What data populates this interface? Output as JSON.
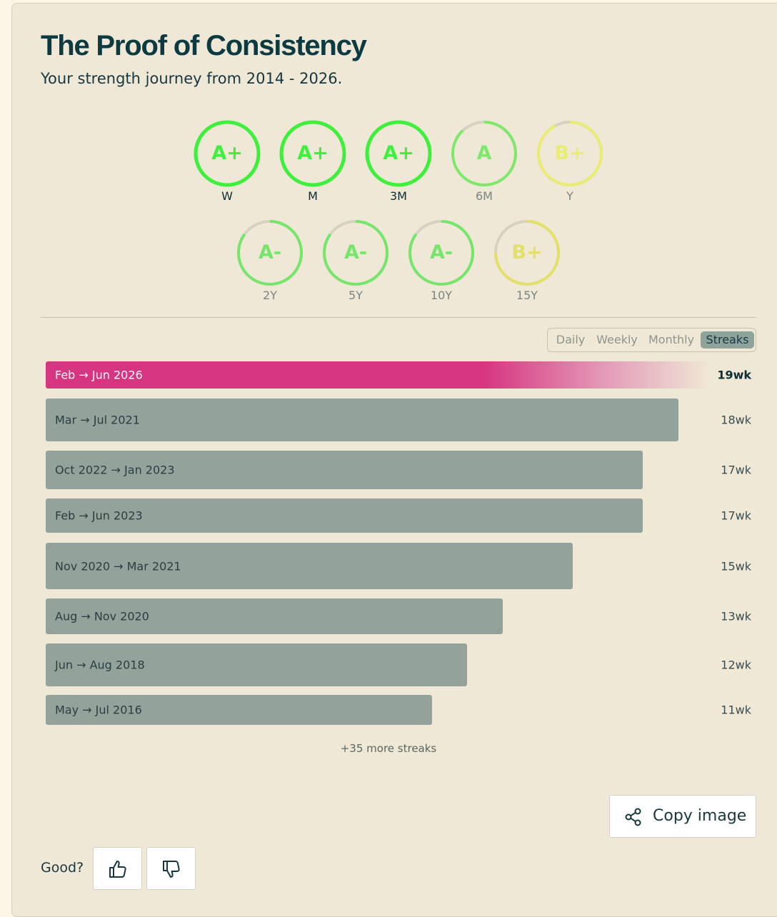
{
  "header": {
    "title": "The Proof of Consistency",
    "subtitle": "Your strength journey from 2014 - 2026."
  },
  "grades": [
    {
      "grade": "A+",
      "label": "W",
      "progress": 1.0,
      "color": "#3ef03b"
    },
    {
      "grade": "A+",
      "label": "M",
      "progress": 1.0,
      "color": "#3ef03b"
    },
    {
      "grade": "A+",
      "label": "3M",
      "progress": 1.0,
      "color": "#3ef03b"
    },
    {
      "grade": "A",
      "label": "6M",
      "progress": 0.88,
      "color": "#7ee86a"
    },
    {
      "grade": "B+",
      "label": "Y",
      "progress": 0.92,
      "color": "#e8ec70"
    },
    {
      "grade": "A-",
      "label": "2Y",
      "progress": 0.85,
      "color": "#76e66a"
    },
    {
      "grade": "A-",
      "label": "5Y",
      "progress": 0.85,
      "color": "#76e66a"
    },
    {
      "grade": "A-",
      "label": "10Y",
      "progress": 0.85,
      "color": "#76e66a"
    },
    {
      "grade": "B+",
      "label": "15Y",
      "progress": 0.75,
      "color": "#e3e06a"
    }
  ],
  "tabs": {
    "items": [
      "Daily",
      "Weekly",
      "Monthly",
      "Streaks"
    ],
    "active": "Streaks"
  },
  "streaks": [
    {
      "range": "Feb → Jun 2026",
      "weeks": 19,
      "weeks_label": "19wk"
    },
    {
      "range": "Mar → Jul 2021",
      "weeks": 18,
      "weeks_label": "18wk"
    },
    {
      "range": "Oct 2022 → Jan 2023",
      "weeks": 17,
      "weeks_label": "17wk"
    },
    {
      "range": "Feb → Jun 2023",
      "weeks": 17,
      "weeks_label": "17wk"
    },
    {
      "range": "Nov 2020 → Mar 2021",
      "weeks": 15,
      "weeks_label": "15wk"
    },
    {
      "range": "Aug → Nov 2020",
      "weeks": 13,
      "weeks_label": "13wk"
    },
    {
      "range": "Jun → Aug 2018",
      "weeks": 12,
      "weeks_label": "12wk"
    },
    {
      "range": "May → Jul 2016",
      "weeks": 11,
      "weeks_label": "11wk"
    }
  ],
  "more_streaks": "+35 more streaks",
  "actions": {
    "copy_image": "Copy image",
    "good_prompt": "Good?",
    "share_icon": "share-icon",
    "thumbs_up_icon": "thumbs-up-icon",
    "thumbs_down_icon": "thumbs-down-icon"
  }
}
